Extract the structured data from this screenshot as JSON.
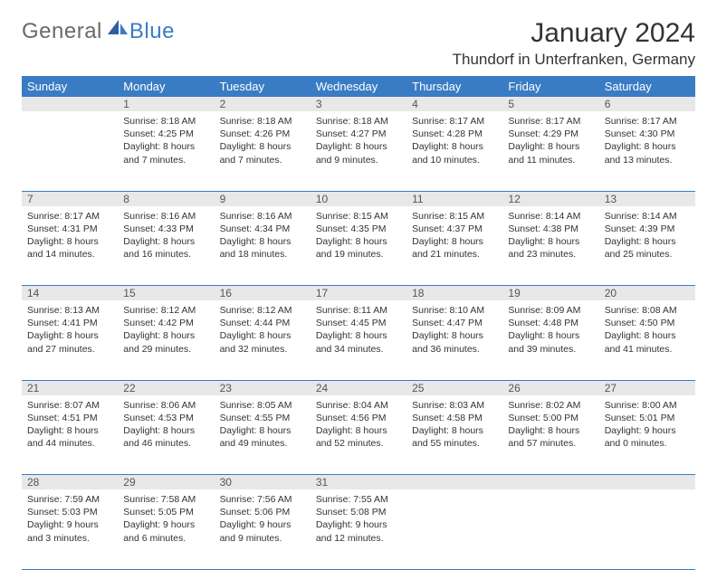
{
  "brand": {
    "part1": "General",
    "part2": "Blue"
  },
  "title": "January 2024",
  "location": "Thundorf in Unterfranken, Germany",
  "colors": {
    "header_bg": "#3a7cc4",
    "daynum_bg": "#e8e8e8",
    "row_border": "#3a7cc4",
    "page_bg": "#ffffff",
    "text": "#333333",
    "logo_gray": "#6a6a6a",
    "logo_blue": "#3a7cc4"
  },
  "weekdays": [
    "Sunday",
    "Monday",
    "Tuesday",
    "Wednesday",
    "Thursday",
    "Friday",
    "Saturday"
  ],
  "weeks": [
    [
      null,
      {
        "n": "1",
        "sr": "8:18 AM",
        "ss": "4:25 PM",
        "dl": "8 hours and 7 minutes."
      },
      {
        "n": "2",
        "sr": "8:18 AM",
        "ss": "4:26 PM",
        "dl": "8 hours and 7 minutes."
      },
      {
        "n": "3",
        "sr": "8:18 AM",
        "ss": "4:27 PM",
        "dl": "8 hours and 9 minutes."
      },
      {
        "n": "4",
        "sr": "8:17 AM",
        "ss": "4:28 PM",
        "dl": "8 hours and 10 minutes."
      },
      {
        "n": "5",
        "sr": "8:17 AM",
        "ss": "4:29 PM",
        "dl": "8 hours and 11 minutes."
      },
      {
        "n": "6",
        "sr": "8:17 AM",
        "ss": "4:30 PM",
        "dl": "8 hours and 13 minutes."
      }
    ],
    [
      {
        "n": "7",
        "sr": "8:17 AM",
        "ss": "4:31 PM",
        "dl": "8 hours and 14 minutes."
      },
      {
        "n": "8",
        "sr": "8:16 AM",
        "ss": "4:33 PM",
        "dl": "8 hours and 16 minutes."
      },
      {
        "n": "9",
        "sr": "8:16 AM",
        "ss": "4:34 PM",
        "dl": "8 hours and 18 minutes."
      },
      {
        "n": "10",
        "sr": "8:15 AM",
        "ss": "4:35 PM",
        "dl": "8 hours and 19 minutes."
      },
      {
        "n": "11",
        "sr": "8:15 AM",
        "ss": "4:37 PM",
        "dl": "8 hours and 21 minutes."
      },
      {
        "n": "12",
        "sr": "8:14 AM",
        "ss": "4:38 PM",
        "dl": "8 hours and 23 minutes."
      },
      {
        "n": "13",
        "sr": "8:14 AM",
        "ss": "4:39 PM",
        "dl": "8 hours and 25 minutes."
      }
    ],
    [
      {
        "n": "14",
        "sr": "8:13 AM",
        "ss": "4:41 PM",
        "dl": "8 hours and 27 minutes."
      },
      {
        "n": "15",
        "sr": "8:12 AM",
        "ss": "4:42 PM",
        "dl": "8 hours and 29 minutes."
      },
      {
        "n": "16",
        "sr": "8:12 AM",
        "ss": "4:44 PM",
        "dl": "8 hours and 32 minutes."
      },
      {
        "n": "17",
        "sr": "8:11 AM",
        "ss": "4:45 PM",
        "dl": "8 hours and 34 minutes."
      },
      {
        "n": "18",
        "sr": "8:10 AM",
        "ss": "4:47 PM",
        "dl": "8 hours and 36 minutes."
      },
      {
        "n": "19",
        "sr": "8:09 AM",
        "ss": "4:48 PM",
        "dl": "8 hours and 39 minutes."
      },
      {
        "n": "20",
        "sr": "8:08 AM",
        "ss": "4:50 PM",
        "dl": "8 hours and 41 minutes."
      }
    ],
    [
      {
        "n": "21",
        "sr": "8:07 AM",
        "ss": "4:51 PM",
        "dl": "8 hours and 44 minutes."
      },
      {
        "n": "22",
        "sr": "8:06 AM",
        "ss": "4:53 PM",
        "dl": "8 hours and 46 minutes."
      },
      {
        "n": "23",
        "sr": "8:05 AM",
        "ss": "4:55 PM",
        "dl": "8 hours and 49 minutes."
      },
      {
        "n": "24",
        "sr": "8:04 AM",
        "ss": "4:56 PM",
        "dl": "8 hours and 52 minutes."
      },
      {
        "n": "25",
        "sr": "8:03 AM",
        "ss": "4:58 PM",
        "dl": "8 hours and 55 minutes."
      },
      {
        "n": "26",
        "sr": "8:02 AM",
        "ss": "5:00 PM",
        "dl": "8 hours and 57 minutes."
      },
      {
        "n": "27",
        "sr": "8:00 AM",
        "ss": "5:01 PM",
        "dl": "9 hours and 0 minutes."
      }
    ],
    [
      {
        "n": "28",
        "sr": "7:59 AM",
        "ss": "5:03 PM",
        "dl": "9 hours and 3 minutes."
      },
      {
        "n": "29",
        "sr": "7:58 AM",
        "ss": "5:05 PM",
        "dl": "9 hours and 6 minutes."
      },
      {
        "n": "30",
        "sr": "7:56 AM",
        "ss": "5:06 PM",
        "dl": "9 hours and 9 minutes."
      },
      {
        "n": "31",
        "sr": "7:55 AM",
        "ss": "5:08 PM",
        "dl": "9 hours and 12 minutes."
      },
      null,
      null,
      null
    ]
  ],
  "labels": {
    "sunrise": "Sunrise: ",
    "sunset": "Sunset: ",
    "daylight": "Daylight: "
  }
}
